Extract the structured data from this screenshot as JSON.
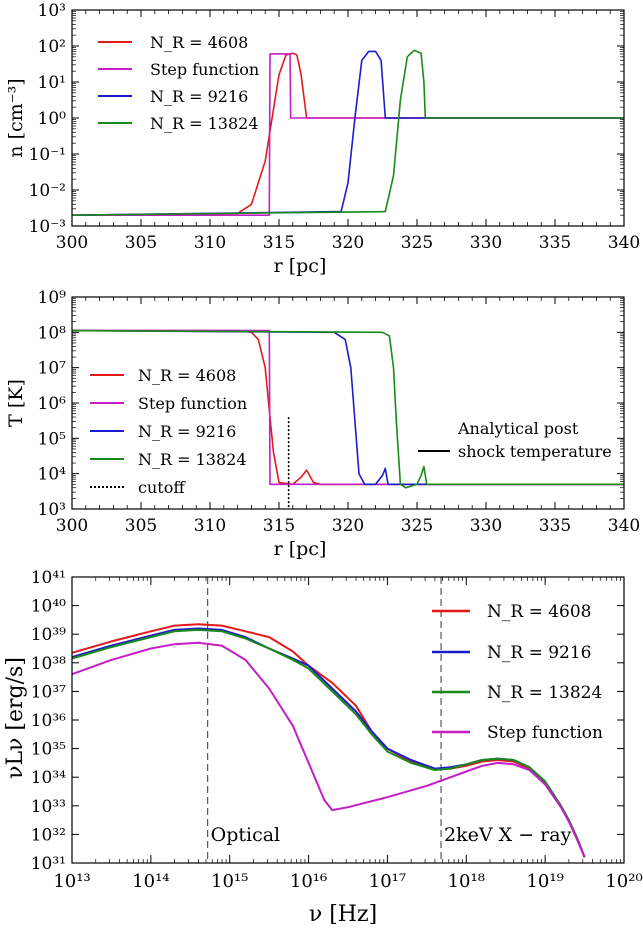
{
  "colors": {
    "NR4608": "#e31a1c",
    "step": "#c41ec4",
    "NR9216": "#1c1ccf",
    "NR13824": "#1a8a1a",
    "black": "#000000",
    "gray": "#555555"
  },
  "chart_data": [
    {
      "type": "line",
      "panel": "density",
      "xlabel": "r [pc]",
      "ylabel": "n [cm⁻³]",
      "xlim": [
        300,
        340
      ],
      "ylim_log10": [
        -3,
        3
      ],
      "y_scale": "log",
      "x_ticks": [
        "300",
        "305",
        "310",
        "315",
        "320",
        "325",
        "330",
        "335",
        "340"
      ],
      "y_ticks": [
        "10⁻³",
        "10⁻²",
        "10⁻¹",
        "10⁰",
        "10¹",
        "10²",
        "10³"
      ],
      "legend_position": "top-left",
      "legend": [
        "N_R = 4608",
        "Step function",
        "N_R = 9216",
        "N_R = 13824"
      ],
      "series": [
        {
          "name": "N_R = 4608",
          "x": [
            300,
            312,
            313,
            314,
            314.5,
            315,
            315.5,
            316,
            316.3,
            316.6,
            317,
            340
          ],
          "y_log10": [
            -2.7,
            -2.65,
            -2.4,
            -1.2,
            0.0,
            1.2,
            1.75,
            1.8,
            1.75,
            1.2,
            0.0,
            0.0
          ]
        },
        {
          "name": "Step function",
          "x": [
            300,
            314.3,
            314.35,
            315.8,
            315.85,
            340
          ],
          "y_log10": [
            -2.7,
            -2.7,
            1.78,
            1.78,
            0.0,
            0.0
          ]
        },
        {
          "name": "N_R = 9216",
          "x": [
            300,
            319.5,
            320,
            320.5,
            321,
            321.5,
            322,
            322.4,
            322.7,
            340
          ],
          "y_log10": [
            -2.7,
            -2.6,
            -1.8,
            0.0,
            1.6,
            1.85,
            1.85,
            1.6,
            0.0,
            0.0
          ]
        },
        {
          "name": "N_R = 13824",
          "x": [
            300,
            322.7,
            323.3,
            323.8,
            324.3,
            324.8,
            325.3,
            325.5,
            325.6,
            340
          ],
          "y_log10": [
            -2.7,
            -2.6,
            -1.6,
            0.5,
            1.7,
            1.88,
            1.8,
            1.0,
            0.0,
            0.0
          ]
        }
      ]
    },
    {
      "type": "line",
      "panel": "temperature",
      "xlabel": "r [pc]",
      "ylabel": "T [K]",
      "xlim": [
        300,
        340
      ],
      "ylim_log10": [
        3,
        9
      ],
      "y_scale": "log",
      "x_ticks": [
        "300",
        "305",
        "310",
        "315",
        "320",
        "325",
        "330",
        "335",
        "340"
      ],
      "y_ticks": [
        "10³",
        "10⁴",
        "10⁵",
        "10⁶",
        "10⁷",
        "10⁸",
        "10⁹"
      ],
      "legend_position": "lower-left",
      "legend": [
        "N_R = 4608",
        "Step function",
        "N_R = 9216",
        "N_R = 13824",
        "cutoff"
      ],
      "annotation": "Analytical post shock temperature",
      "annotation_lines": [
        "Analytical post",
        "shock temperature"
      ],
      "cutoff_x": 315.7,
      "cutoff_top_log10": 5.6,
      "series": [
        {
          "name": "N_R = 4608",
          "x": [
            300,
            312,
            313,
            313.5,
            314,
            314.3,
            314.6,
            315,
            316,
            316.6,
            317,
            317.5,
            318,
            340
          ],
          "y_log10": [
            8.05,
            8.05,
            8.0,
            7.8,
            7.0,
            5.8,
            4.6,
            3.75,
            3.7,
            3.9,
            4.1,
            3.75,
            3.7,
            3.7
          ]
        },
        {
          "name": "Step function",
          "x": [
            300,
            314.3,
            314.35,
            340
          ],
          "y_log10": [
            8.05,
            8.05,
            3.7,
            3.7
          ]
        },
        {
          "name": "N_R = 9216",
          "x": [
            300,
            319,
            319.8,
            320.2,
            320.5,
            320.8,
            321.2,
            322,
            322.5,
            322.7,
            322.9,
            340
          ],
          "y_log10": [
            8.05,
            8.0,
            7.8,
            7.0,
            5.5,
            4.0,
            3.7,
            3.7,
            3.95,
            4.15,
            3.7,
            3.7
          ]
        },
        {
          "name": "N_R = 13824",
          "x": [
            300,
            322.5,
            323,
            323.3,
            323.5,
            323.8,
            324.2,
            325,
            325.3,
            325.5,
            325.7,
            340
          ],
          "y_log10": [
            8.05,
            8.0,
            7.9,
            7.0,
            5.5,
            3.7,
            3.6,
            3.7,
            3.95,
            4.2,
            3.7,
            3.7
          ]
        }
      ]
    },
    {
      "type": "line",
      "panel": "sed",
      "xlabel": "ν [Hz]",
      "ylabel": "νLν [erg/s]",
      "x_scale": "log",
      "y_scale": "log",
      "xlim_log10": [
        13,
        20
      ],
      "ylim_log10": [
        31,
        41
      ],
      "x_ticks": [
        "10¹³",
        "10¹⁴",
        "10¹⁵",
        "10¹⁶",
        "10¹⁷",
        "10¹⁸",
        "10¹⁹",
        "10²⁰"
      ],
      "y_ticks": [
        "10³¹",
        "10³²",
        "10³³",
        "10³⁴",
        "10³⁵",
        "10³⁶",
        "10³⁷",
        "10³⁸",
        "10³⁹",
        "10⁴⁰",
        "10⁴¹"
      ],
      "legend_position": "top-right",
      "legend": [
        "N_R = 4608",
        "N_R = 9216",
        "N_R = 13824",
        "Step function"
      ],
      "annotations": [
        {
          "text": "Optical",
          "x_log10": 14.72
        },
        {
          "text": "2keV X − ray",
          "x_log10": 17.68
        }
      ],
      "series": [
        {
          "name": "N_R = 4608",
          "x_log10": [
            13,
            13.5,
            14,
            14.3,
            14.6,
            14.9,
            15.2,
            15.5,
            15.8,
            16.0,
            16.3,
            16.6,
            16.8,
            17.0,
            17.3,
            17.6,
            17.8,
            18.0,
            18.2,
            18.4,
            18.6,
            18.8,
            19.0,
            19.2,
            19.3,
            19.4,
            19.5
          ],
          "y_log10": [
            38.35,
            38.75,
            39.1,
            39.3,
            39.35,
            39.3,
            39.1,
            38.9,
            38.4,
            37.9,
            37.3,
            36.5,
            35.6,
            35.0,
            34.55,
            34.3,
            34.3,
            34.4,
            34.55,
            34.6,
            34.55,
            34.3,
            33.8,
            33.0,
            32.5,
            31.9,
            31.2
          ]
        },
        {
          "name": "N_R = 9216",
          "x_log10": [
            13,
            13.5,
            14,
            14.3,
            14.6,
            14.9,
            15.2,
            15.5,
            15.8,
            16.0,
            16.3,
            16.6,
            16.8,
            17.0,
            17.3,
            17.6,
            17.8,
            18.0,
            18.2,
            18.4,
            18.6,
            18.8,
            19.0,
            19.2,
            19.3,
            19.4,
            19.5
          ],
          "y_log10": [
            38.2,
            38.6,
            38.95,
            39.15,
            39.2,
            39.15,
            38.9,
            38.5,
            38.15,
            37.9,
            37.1,
            36.3,
            35.6,
            35.0,
            34.6,
            34.3,
            34.35,
            34.45,
            34.6,
            34.65,
            34.6,
            34.35,
            33.85,
            33.0,
            32.5,
            31.9,
            31.2
          ]
        },
        {
          "name": "N_R = 13824",
          "x_log10": [
            13,
            13.5,
            14,
            14.3,
            14.6,
            14.9,
            15.2,
            15.5,
            15.8,
            16.0,
            16.3,
            16.6,
            16.8,
            17.0,
            17.3,
            17.6,
            17.8,
            18.0,
            18.2,
            18.4,
            18.6,
            18.8,
            19.0,
            19.2,
            19.3,
            19.4,
            19.5
          ],
          "y_log10": [
            38.15,
            38.55,
            38.9,
            39.1,
            39.15,
            39.1,
            38.85,
            38.5,
            38.1,
            37.8,
            37.0,
            36.2,
            35.5,
            34.9,
            34.5,
            34.25,
            34.3,
            34.45,
            34.6,
            34.65,
            34.6,
            34.35,
            33.85,
            33.0,
            32.5,
            31.9,
            31.2
          ]
        },
        {
          "name": "Step function",
          "x_log10": [
            13,
            13.5,
            14,
            14.3,
            14.6,
            14.9,
            15.2,
            15.5,
            15.8,
            16.0,
            16.2,
            16.3,
            16.5,
            17.0,
            17.5,
            18.0,
            18.2,
            18.4,
            18.6,
            18.8,
            19.0,
            19.2,
            19.3,
            19.4,
            19.5
          ],
          "y_log10": [
            37.6,
            38.1,
            38.5,
            38.65,
            38.7,
            38.6,
            38.1,
            37.1,
            35.8,
            34.5,
            33.2,
            32.85,
            32.95,
            33.3,
            33.7,
            34.2,
            34.4,
            34.5,
            34.45,
            34.25,
            33.75,
            32.95,
            32.45,
            31.85,
            31.2
          ]
        }
      ]
    }
  ]
}
